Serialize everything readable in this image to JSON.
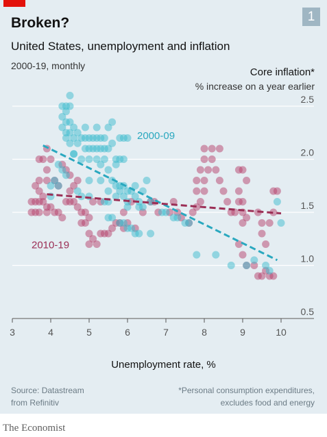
{
  "brand_color": "#e3120b",
  "badge": "1",
  "title": "Broken?",
  "subtitle": "United States, unemployment and inflation",
  "period": "2000-19, monthly",
  "source_line1": "Source: Datastream",
  "source_line2": "from Refinitiv",
  "footnote_line1": "*Personal consumption expenditures,",
  "footnote_line2": "excludes food and energy",
  "publisher": "The Economist",
  "chart_data": {
    "type": "scatter",
    "title": "",
    "xlabel": "Unemployment rate, %",
    "ylabel": "Core inflation*",
    "ylabel_sub": "% increase on a year earlier",
    "xlim": [
      3,
      10
    ],
    "ylim": [
      0.5,
      2.5
    ],
    "xticks": [
      3,
      4,
      5,
      6,
      7,
      8,
      9,
      10
    ],
    "yticks": [
      0.5,
      1.0,
      1.5,
      2.0,
      2.5
    ],
    "ytick_labels": [
      "0.5",
      "1.0",
      "1.5",
      "2.0",
      "2.5"
    ],
    "grid": "horizontal",
    "series": [
      {
        "name": "2000-09",
        "color": "#3ebbcd",
        "trend": [
          [
            3.8,
            2.13
          ],
          [
            9.9,
            1.05
          ]
        ],
        "points": [
          [
            4.3,
            2.5
          ],
          [
            4.4,
            2.5
          ],
          [
            4.5,
            2.5
          ],
          [
            4.5,
            2.6
          ],
          [
            4.4,
            2.45
          ],
          [
            4.3,
            2.4
          ],
          [
            4.4,
            2.35
          ],
          [
            4.5,
            2.35
          ],
          [
            4.6,
            2.3
          ],
          [
            4.3,
            2.3
          ],
          [
            4.4,
            2.25
          ],
          [
            4.5,
            2.25
          ],
          [
            4.7,
            2.25
          ],
          [
            4.8,
            2.2
          ],
          [
            4.6,
            2.2
          ],
          [
            4.4,
            2.2
          ],
          [
            4.9,
            2.2
          ],
          [
            5.0,
            2.2
          ],
          [
            5.1,
            2.2
          ],
          [
            5.2,
            2.2
          ],
          [
            5.3,
            2.2
          ],
          [
            5.4,
            2.2
          ],
          [
            5.5,
            2.3
          ],
          [
            5.6,
            2.35
          ],
          [
            5.8,
            2.2
          ],
          [
            5.9,
            2.2
          ],
          [
            6.0,
            2.2
          ],
          [
            4.5,
            2.15
          ],
          [
            4.7,
            2.15
          ],
          [
            4.9,
            2.1
          ],
          [
            5.0,
            2.1
          ],
          [
            5.1,
            2.1
          ],
          [
            5.2,
            2.1
          ],
          [
            5.3,
            2.1
          ],
          [
            5.4,
            2.1
          ],
          [
            5.5,
            2.1
          ],
          [
            4.6,
            2.05
          ],
          [
            4.8,
            2.0
          ],
          [
            5.0,
            2.0
          ],
          [
            5.2,
            2.0
          ],
          [
            5.4,
            2.0
          ],
          [
            5.3,
            1.95
          ],
          [
            5.5,
            1.9
          ],
          [
            5.7,
            1.95
          ],
          [
            5.8,
            2.0
          ],
          [
            4.6,
            2.05
          ],
          [
            4.2,
            1.95
          ],
          [
            4.3,
            1.9
          ],
          [
            4.4,
            1.85
          ],
          [
            4.1,
            1.8
          ],
          [
            4.0,
            1.75
          ],
          [
            4.2,
            1.75
          ],
          [
            4.0,
            1.65
          ],
          [
            5.0,
            1.8
          ],
          [
            5.3,
            1.8
          ],
          [
            5.6,
            1.8
          ],
          [
            5.7,
            1.75
          ],
          [
            5.8,
            1.75
          ],
          [
            5.9,
            1.75
          ],
          [
            6.0,
            1.7
          ],
          [
            6.1,
            1.7
          ],
          [
            5.7,
            1.65
          ],
          [
            5.9,
            1.65
          ],
          [
            6.2,
            1.65
          ],
          [
            6.5,
            1.8
          ],
          [
            6.3,
            1.6
          ],
          [
            6.6,
            1.6
          ],
          [
            6.0,
            1.6
          ],
          [
            4.7,
            1.7
          ],
          [
            4.8,
            1.65
          ],
          [
            5.0,
            1.65
          ],
          [
            5.4,
            1.6
          ],
          [
            5.5,
            1.6
          ],
          [
            6.3,
            1.55
          ],
          [
            6.4,
            1.55
          ],
          [
            6.0,
            1.55
          ],
          [
            5.5,
            1.45
          ],
          [
            5.6,
            1.45
          ],
          [
            5.8,
            1.4
          ],
          [
            5.9,
            1.4
          ],
          [
            6.0,
            1.35
          ],
          [
            6.1,
            1.35
          ],
          [
            6.2,
            1.3
          ],
          [
            6.3,
            1.3
          ],
          [
            6.6,
            1.3
          ],
          [
            6.9,
            1.5
          ],
          [
            7.0,
            1.5
          ],
          [
            7.2,
            1.45
          ],
          [
            7.3,
            1.45
          ],
          [
            7.5,
            1.4
          ],
          [
            7.6,
            1.4
          ],
          [
            7.8,
            1.1
          ],
          [
            8.3,
            1.1
          ],
          [
            8.7,
            1.0
          ],
          [
            9.1,
            1.0
          ],
          [
            9.3,
            1.05
          ],
          [
            9.6,
            1.0
          ],
          [
            9.7,
            0.95
          ],
          [
            9.9,
            1.6
          ],
          [
            10.0,
            1.4
          ],
          [
            5.6,
            2.15
          ],
          [
            5.7,
            2.0
          ],
          [
            5.9,
            2.0
          ],
          [
            4.9,
            2.3
          ],
          [
            5.2,
            2.3
          ],
          [
            5.8,
            1.7
          ],
          [
            6.2,
            1.75
          ],
          [
            5.5,
            1.7
          ],
          [
            6.4,
            1.7
          ]
        ]
      },
      {
        "name": "2010-19",
        "color": "#b5426b",
        "trend": [
          [
            3.9,
            1.67
          ],
          [
            10.0,
            1.49
          ]
        ],
        "points": [
          [
            3.7,
            2.0
          ],
          [
            3.8,
            2.0
          ],
          [
            3.9,
            2.1
          ],
          [
            4.0,
            2.0
          ],
          [
            3.9,
            1.9
          ],
          [
            4.1,
            1.8
          ],
          [
            4.2,
            1.75
          ],
          [
            3.9,
            1.8
          ],
          [
            3.7,
            1.8
          ],
          [
            3.6,
            1.75
          ],
          [
            3.7,
            1.7
          ],
          [
            3.8,
            1.65
          ],
          [
            3.5,
            1.6
          ],
          [
            3.6,
            1.6
          ],
          [
            3.7,
            1.6
          ],
          [
            3.8,
            1.6
          ],
          [
            3.9,
            1.55
          ],
          [
            4.0,
            1.55
          ],
          [
            3.5,
            1.5
          ],
          [
            3.6,
            1.5
          ],
          [
            3.7,
            1.5
          ],
          [
            3.9,
            1.5
          ],
          [
            4.1,
            1.5
          ],
          [
            4.2,
            1.5
          ],
          [
            4.3,
            1.45
          ],
          [
            4.4,
            1.6
          ],
          [
            4.5,
            1.6
          ],
          [
            4.6,
            1.6
          ],
          [
            4.7,
            1.55
          ],
          [
            4.8,
            1.5
          ],
          [
            4.9,
            1.5
          ],
          [
            5.0,
            1.45
          ],
          [
            4.9,
            1.4
          ],
          [
            4.8,
            1.4
          ],
          [
            5.0,
            1.3
          ],
          [
            5.1,
            1.25
          ],
          [
            5.0,
            1.2
          ],
          [
            5.2,
            1.2
          ],
          [
            5.3,
            1.3
          ],
          [
            5.4,
            1.3
          ],
          [
            5.5,
            1.3
          ],
          [
            5.6,
            1.35
          ],
          [
            5.7,
            1.4
          ],
          [
            5.8,
            1.4
          ],
          [
            5.9,
            1.35
          ],
          [
            4.5,
            1.7
          ],
          [
            4.6,
            1.75
          ],
          [
            4.7,
            1.8
          ],
          [
            4.5,
            1.85
          ],
          [
            4.4,
            1.9
          ],
          [
            4.3,
            1.95
          ],
          [
            5.1,
            1.6
          ],
          [
            5.3,
            1.6
          ],
          [
            6.2,
            1.35
          ],
          [
            6.0,
            1.4
          ],
          [
            7.2,
            1.6
          ],
          [
            6.7,
            1.6
          ],
          [
            6.8,
            1.5
          ],
          [
            7.1,
            1.5
          ],
          [
            7.3,
            1.5
          ],
          [
            7.4,
            1.45
          ],
          [
            7.6,
            1.4
          ],
          [
            7.7,
            1.5
          ],
          [
            7.8,
            1.55
          ],
          [
            7.9,
            1.6
          ],
          [
            8.0,
            1.7
          ],
          [
            7.8,
            1.7
          ],
          [
            7.8,
            1.8
          ],
          [
            8.0,
            1.8
          ],
          [
            8.1,
            1.9
          ],
          [
            7.9,
            1.9
          ],
          [
            8.0,
            2.0
          ],
          [
            8.2,
            2.0
          ],
          [
            8.0,
            2.1
          ],
          [
            8.2,
            2.1
          ],
          [
            8.4,
            2.1
          ],
          [
            8.3,
            1.9
          ],
          [
            8.4,
            1.8
          ],
          [
            8.5,
            1.7
          ],
          [
            8.6,
            1.6
          ],
          [
            8.7,
            1.5
          ],
          [
            8.8,
            1.5
          ],
          [
            8.9,
            1.6
          ],
          [
            8.9,
            1.9
          ],
          [
            9.0,
            1.9
          ],
          [
            9.1,
            1.8
          ],
          [
            8.9,
            1.7
          ],
          [
            9.0,
            1.6
          ],
          [
            9.0,
            1.5
          ],
          [
            9.1,
            1.45
          ],
          [
            9.0,
            1.4
          ],
          [
            8.9,
            1.2
          ],
          [
            9.0,
            1.1
          ],
          [
            9.1,
            1.0
          ],
          [
            9.3,
            1.0
          ],
          [
            9.4,
            0.9
          ],
          [
            9.5,
            0.9
          ],
          [
            9.6,
            0.95
          ],
          [
            9.7,
            0.9
          ],
          [
            9.8,
            0.9
          ],
          [
            9.5,
            1.3
          ],
          [
            9.6,
            1.2
          ],
          [
            9.7,
            1.4
          ],
          [
            9.8,
            1.5
          ],
          [
            9.8,
            1.7
          ],
          [
            9.9,
            1.7
          ],
          [
            9.4,
            1.5
          ],
          [
            9.5,
            1.4
          ],
          [
            5.9,
            1.5
          ],
          [
            6.1,
            1.6
          ],
          [
            6.4,
            1.5
          ],
          [
            6.6,
            1.6
          ]
        ]
      }
    ]
  }
}
